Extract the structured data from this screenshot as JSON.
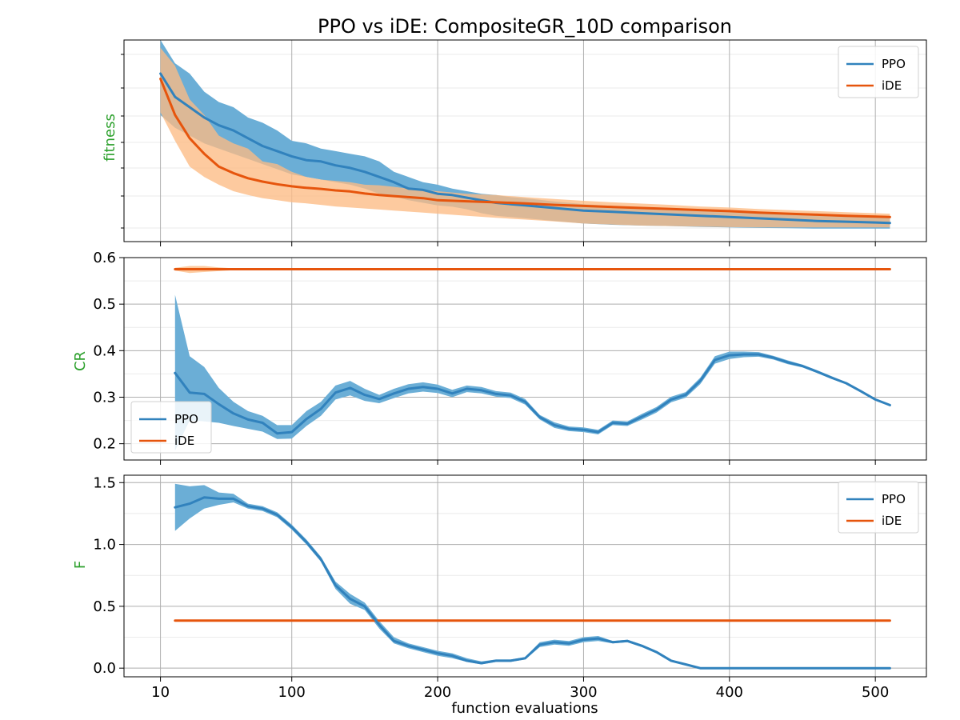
{
  "chart_data": {
    "type": "line",
    "title": "PPO vs iDE: CompositeGR_10D comparison",
    "xlabel": "function evaluations",
    "x_ticks": [
      10,
      100,
      200,
      300,
      400,
      500
    ],
    "xlim": [
      -15,
      535
    ],
    "colors": {
      "ppo_line": "#3182bd",
      "ppo_band": "#6baed6",
      "ide_line": "#e6550d",
      "ide_band": "#fdbb84",
      "ylabel": "#2ca02c"
    },
    "panels": [
      {
        "id": "fitness",
        "ylabel": "fitness",
        "ylim": [
          -0.5,
          7.3
        ],
        "y_ticks": [],
        "y_tick_labels": [],
        "legend_position": "upper-right",
        "series": [
          {
            "name": "PPO",
            "x": [
              10,
              20,
              30,
              40,
              50,
              60,
              70,
              80,
              90,
              100,
              110,
              120,
              130,
              140,
              150,
              160,
              170,
              180,
              190,
              200,
              210,
              220,
              230,
              240,
              250,
              260,
              270,
              280,
              290,
              300,
              320,
              340,
              360,
              380,
              400,
              420,
              440,
              460,
              480,
              500,
              510
            ],
            "mean": [
              6.0,
              5.1,
              4.7,
              4.3,
              4.0,
              3.8,
              3.5,
              3.2,
              3.0,
              2.8,
              2.65,
              2.6,
              2.45,
              2.35,
              2.2,
              2.0,
              1.8,
              1.55,
              1.5,
              1.35,
              1.3,
              1.2,
              1.1,
              1.0,
              0.95,
              0.9,
              0.85,
              0.8,
              0.75,
              0.7,
              0.65,
              0.6,
              0.55,
              0.5,
              0.45,
              0.4,
              0.35,
              0.3,
              0.27,
              0.24,
              0.22
            ],
            "upper": [
              7.3,
              6.4,
              6.0,
              5.3,
              4.9,
              4.7,
              4.3,
              4.1,
              3.8,
              3.4,
              3.3,
              3.1,
              3.0,
              2.9,
              2.8,
              2.6,
              2.2,
              2.0,
              1.8,
              1.7,
              1.55,
              1.45,
              1.35,
              1.3,
              1.22,
              1.18,
              1.12,
              1.05,
              1.0,
              0.95,
              0.88,
              0.8,
              0.75,
              0.7,
              0.65,
              0.6,
              0.55,
              0.52,
              0.5,
              0.48,
              0.47
            ],
            "lower": [
              4.4,
              3.9,
              3.6,
              3.3,
              3.1,
              2.9,
              2.7,
              2.5,
              2.3,
              2.1,
              2.0,
              1.9,
              1.8,
              1.7,
              1.55,
              1.35,
              1.25,
              1.1,
              1.0,
              0.9,
              0.85,
              0.75,
              0.6,
              0.5,
              0.45,
              0.4,
              0.35,
              0.3,
              0.25,
              0.2,
              0.15,
              0.12,
              0.1,
              0.07,
              0.05,
              0.03,
              0.02,
              0.0,
              0.0,
              0.0,
              0.0
            ]
          },
          {
            "name": "iDE",
            "x": [
              10,
              20,
              30,
              40,
              50,
              60,
              70,
              80,
              90,
              100,
              110,
              120,
              130,
              140,
              150,
              160,
              170,
              180,
              190,
              200,
              220,
              240,
              260,
              280,
              300,
              320,
              340,
              360,
              380,
              400,
              420,
              440,
              460,
              480,
              500,
              510
            ],
            "mean": [
              5.8,
              4.4,
              3.5,
              2.9,
              2.4,
              2.15,
              1.95,
              1.82,
              1.72,
              1.64,
              1.58,
              1.54,
              1.48,
              1.44,
              1.36,
              1.3,
              1.26,
              1.22,
              1.18,
              1.1,
              1.06,
              1.02,
              0.98,
              0.92,
              0.88,
              0.84,
              0.8,
              0.76,
              0.72,
              0.68,
              0.62,
              0.58,
              0.54,
              0.5,
              0.47,
              0.45
            ],
            "upper": [
              7.0,
              6.3,
              5.0,
              4.4,
              3.6,
              3.3,
              3.1,
              2.6,
              2.5,
              2.2,
              2.0,
              1.9,
              1.85,
              1.8,
              1.7,
              1.68,
              1.62,
              1.55,
              1.5,
              1.45,
              1.35,
              1.3,
              1.22,
              1.15,
              1.08,
              1.02,
              0.97,
              0.92,
              0.86,
              0.82,
              0.76,
              0.72,
              0.68,
              0.64,
              0.6,
              0.58
            ],
            "lower": [
              4.5,
              3.4,
              2.4,
              2.0,
              1.7,
              1.45,
              1.3,
              1.18,
              1.1,
              1.02,
              0.98,
              0.92,
              0.86,
              0.82,
              0.78,
              0.74,
              0.7,
              0.66,
              0.62,
              0.58,
              0.5,
              0.42,
              0.35,
              0.28,
              0.2,
              0.16,
              0.12,
              0.1,
              0.08,
              0.06,
              0.05,
              0.05,
              0.05,
              0.05,
              0.05,
              0.05
            ]
          }
        ]
      },
      {
        "id": "cr",
        "ylabel": "CR",
        "ylim": [
          0.165,
          0.6
        ],
        "y_ticks": [
          0.2,
          0.3,
          0.4,
          0.5,
          0.6
        ],
        "y_tick_labels": [
          "0.2",
          "0.3",
          "0.4",
          "0.5",
          "0.6"
        ],
        "legend_position": "lower-left",
        "series": [
          {
            "name": "PPO",
            "x": [
              20,
              30,
              40,
              50,
              60,
              70,
              80,
              90,
              100,
              110,
              120,
              130,
              140,
              150,
              160,
              170,
              180,
              190,
              200,
              210,
              220,
              230,
              240,
              250,
              260,
              270,
              280,
              290,
              300,
              310,
              320,
              330,
              340,
              350,
              360,
              370,
              380,
              390,
              400,
              410,
              420,
              430,
              440,
              450,
              460,
              470,
              480,
              490,
              500,
              510
            ],
            "mean": [
              0.352,
              0.31,
              0.307,
              0.285,
              0.265,
              0.252,
              0.245,
              0.222,
              0.225,
              0.253,
              0.275,
              0.31,
              0.32,
              0.305,
              0.296,
              0.308,
              0.318,
              0.322,
              0.318,
              0.308,
              0.318,
              0.315,
              0.307,
              0.304,
              0.29,
              0.257,
              0.24,
              0.232,
              0.23,
              0.225,
              0.245,
              0.243,
              0.258,
              0.273,
              0.295,
              0.305,
              0.335,
              0.38,
              0.39,
              0.392,
              0.392,
              0.385,
              0.375,
              0.367,
              0.355,
              0.342,
              0.33,
              0.313,
              0.295,
              0.283
            ],
            "upper": [
              0.52,
              0.388,
              0.365,
              0.32,
              0.29,
              0.27,
              0.26,
              0.24,
              0.24,
              0.27,
              0.29,
              0.325,
              0.335,
              0.318,
              0.305,
              0.318,
              0.328,
              0.332,
              0.327,
              0.316,
              0.325,
              0.322,
              0.313,
              0.31,
              0.296,
              0.262,
              0.246,
              0.237,
              0.235,
              0.23,
              0.25,
              0.248,
              0.264,
              0.279,
              0.301,
              0.311,
              0.342,
              0.388,
              0.398,
              0.398,
              0.397,
              0.389,
              0.379,
              0.37,
              0.358,
              0.345,
              0.332,
              0.315,
              0.297,
              0.285
            ],
            "lower": [
              0.185,
              0.25,
              0.248,
              0.245,
              0.238,
              0.232,
              0.226,
              0.21,
              0.211,
              0.238,
              0.26,
              0.295,
              0.304,
              0.292,
              0.287,
              0.298,
              0.308,
              0.312,
              0.309,
              0.3,
              0.311,
              0.308,
              0.301,
              0.298,
              0.284,
              0.252,
              0.234,
              0.227,
              0.225,
              0.22,
              0.24,
              0.238,
              0.252,
              0.267,
              0.289,
              0.299,
              0.328,
              0.372,
              0.382,
              0.386,
              0.387,
              0.381,
              0.371,
              0.364,
              0.352,
              0.339,
              0.328,
              0.311,
              0.293,
              0.281
            ]
          },
          {
            "name": "iDE",
            "x": [
              20,
              30,
              40,
              50,
              60,
              80,
              100,
              150,
              200,
              300,
              400,
              510
            ],
            "mean": [
              0.575,
              0.575,
              0.575,
              0.575,
              0.575,
              0.575,
              0.575,
              0.575,
              0.575,
              0.575,
              0.575,
              0.575
            ],
            "upper": [
              0.578,
              0.582,
              0.582,
              0.579,
              0.577,
              0.576,
              0.576,
              0.576,
              0.576,
              0.576,
              0.576,
              0.576
            ],
            "lower": [
              0.572,
              0.567,
              0.569,
              0.571,
              0.573,
              0.574,
              0.574,
              0.574,
              0.574,
              0.574,
              0.574,
              0.574
            ]
          }
        ]
      },
      {
        "id": "f",
        "ylabel": "F",
        "ylim": [
          -0.07,
          1.56
        ],
        "y_ticks": [
          0.0,
          0.5,
          1.0,
          1.5
        ],
        "y_tick_labels": [
          "0.0",
          "0.5",
          "1.0",
          "1.5"
        ],
        "legend_position": "upper-right",
        "series": [
          {
            "name": "PPO",
            "x": [
              20,
              30,
              40,
              50,
              60,
              70,
              80,
              90,
              100,
              110,
              120,
              130,
              140,
              150,
              160,
              170,
              180,
              190,
              200,
              210,
              220,
              230,
              240,
              250,
              260,
              270,
              280,
              290,
              300,
              310,
              320,
              330,
              340,
              350,
              360,
              370,
              380,
              390,
              400,
              420,
              440,
              460,
              480,
              500,
              510
            ],
            "mean": [
              1.3,
              1.33,
              1.38,
              1.37,
              1.37,
              1.31,
              1.29,
              1.24,
              1.14,
              1.02,
              0.88,
              0.67,
              0.56,
              0.5,
              0.35,
              0.22,
              0.18,
              0.15,
              0.12,
              0.1,
              0.06,
              0.04,
              0.06,
              0.06,
              0.08,
              0.19,
              0.21,
              0.2,
              0.23,
              0.24,
              0.21,
              0.22,
              0.18,
              0.13,
              0.06,
              0.03,
              0.0,
              0.0,
              0.0,
              0.0,
              0.0,
              0.0,
              0.0,
              0.0,
              0.0
            ],
            "upper": [
              1.49,
              1.47,
              1.48,
              1.42,
              1.41,
              1.33,
              1.31,
              1.26,
              1.16,
              1.04,
              0.9,
              0.7,
              0.6,
              0.53,
              0.38,
              0.25,
              0.2,
              0.17,
              0.14,
              0.12,
              0.08,
              0.055,
              0.07,
              0.07,
              0.09,
              0.21,
              0.23,
              0.22,
              0.25,
              0.26,
              0.22,
              0.23,
              0.19,
              0.14,
              0.07,
              0.035,
              0.0,
              0.0,
              0.0,
              0.0,
              0.0,
              0.0,
              0.0,
              0.0,
              0.0
            ],
            "lower": [
              1.11,
              1.21,
              1.29,
              1.32,
              1.34,
              1.29,
              1.27,
              1.22,
              1.12,
              1.0,
              0.86,
              0.64,
              0.52,
              0.47,
              0.32,
              0.2,
              0.16,
              0.13,
              0.1,
              0.08,
              0.05,
              0.03,
              0.05,
              0.05,
              0.07,
              0.17,
              0.19,
              0.18,
              0.21,
              0.22,
              0.2,
              0.21,
              0.17,
              0.12,
              0.05,
              0.025,
              0.0,
              0.0,
              0.0,
              0.0,
              0.0,
              0.0,
              0.0,
              0.0,
              0.0
            ]
          },
          {
            "name": "iDE",
            "x": [
              20,
              510
            ],
            "mean": [
              0.385,
              0.385
            ],
            "upper": [
              0.385,
              0.385
            ],
            "lower": [
              0.385,
              0.385
            ]
          }
        ]
      }
    ]
  }
}
